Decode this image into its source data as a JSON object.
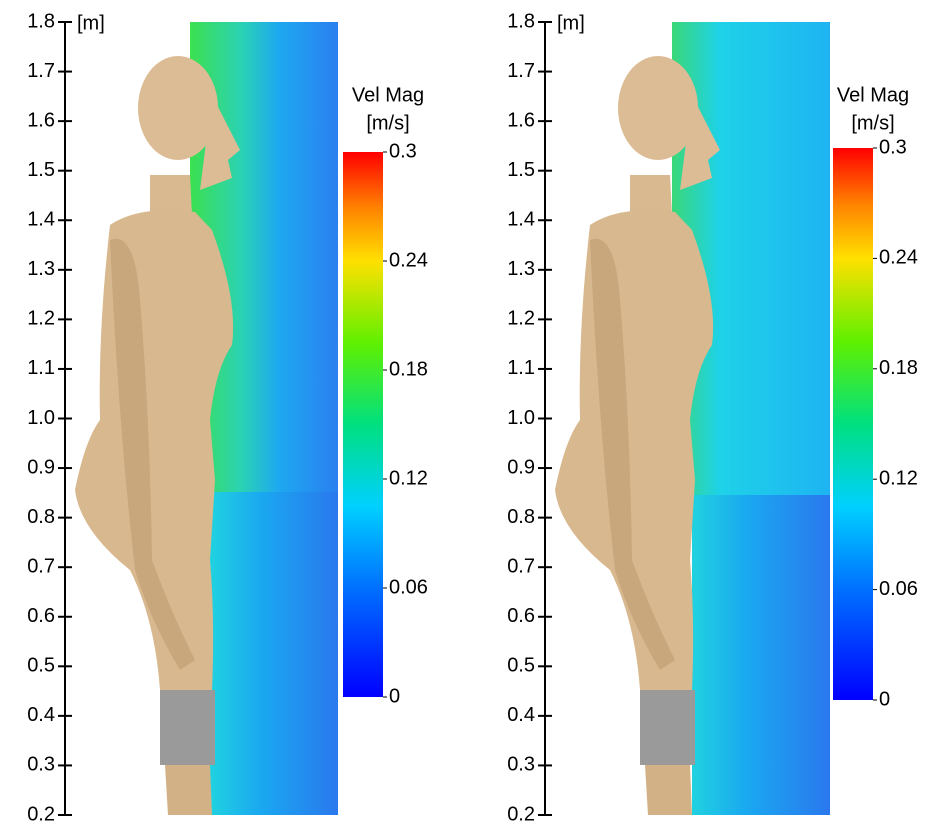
{
  "chart_data": [
    {
      "type": "field",
      "y_label": "[m]",
      "ylim": [
        0.2,
        1.8
      ],
      "yticks": [
        0.2,
        0.3,
        0.4,
        0.5,
        0.6,
        0.7,
        0.8,
        0.9,
        {
          "value": 1.0,
          "label": "1.0"
        },
        1.1,
        1.2,
        1.3,
        1.4,
        1.5,
        1.6,
        1.7,
        1.8
      ],
      "colorbar": {
        "title": [
          "Vel Mag",
          "[m/s]"
        ],
        "lim": [
          0,
          0.3
        ],
        "ticks": [
          0,
          0.06,
          0.12,
          0.18,
          0.24,
          0.3
        ]
      }
    },
    {
      "type": "field",
      "y_label": "[m]",
      "ylim": [
        0.2,
        1.8
      ],
      "yticks": [
        0.2,
        0.3,
        0.4,
        0.5,
        0.6,
        0.7,
        0.8,
        0.9,
        {
          "value": 1.0,
          "label": "1.0"
        },
        1.1,
        1.2,
        1.3,
        1.4,
        1.5,
        1.6,
        1.7,
        1.8
      ],
      "colorbar": {
        "title": [
          "Vel Mag",
          "[m/s]"
        ],
        "lim": [
          0,
          0.3
        ],
        "ticks": [
          0,
          0.06,
          0.12,
          0.18,
          0.24,
          0.3
        ]
      }
    }
  ]
}
